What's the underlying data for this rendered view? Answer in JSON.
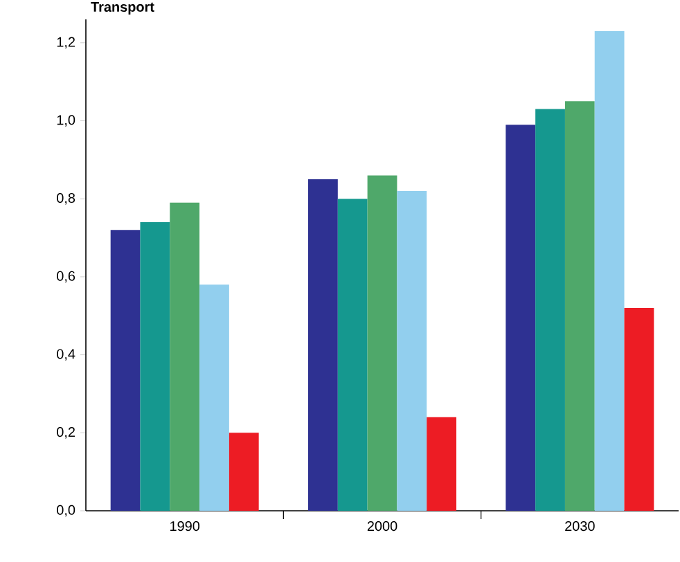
{
  "chart_data": {
    "type": "bar",
    "title": "Transport",
    "categories": [
      "1990",
      "2000",
      "2030"
    ],
    "series": [
      {
        "color": "#2e3192",
        "values": [
          0.72,
          0.85,
          0.99
        ]
      },
      {
        "color": "#15988f",
        "values": [
          0.74,
          0.8,
          1.03
        ]
      },
      {
        "color": "#4fa86a",
        "values": [
          0.79,
          0.86,
          1.05
        ]
      },
      {
        "color": "#92cfee",
        "values": [
          0.58,
          0.82,
          1.23
        ]
      },
      {
        "color": "#ed1c24",
        "values": [
          0.2,
          0.24,
          0.52
        ]
      }
    ],
    "ylim": [
      0,
      1.26
    ],
    "yticks": [
      {
        "value": 0,
        "label": "0,0"
      },
      {
        "value": 0.2,
        "label": "0,2"
      },
      {
        "value": 0.4,
        "label": "0,4"
      },
      {
        "value": 0.6,
        "label": "0,6"
      },
      {
        "value": 0.8,
        "label": "0,8"
      },
      {
        "value": 1.0,
        "label": "1,0"
      },
      {
        "value": 1.2,
        "label": "1,2"
      }
    ],
    "grid": false
  }
}
